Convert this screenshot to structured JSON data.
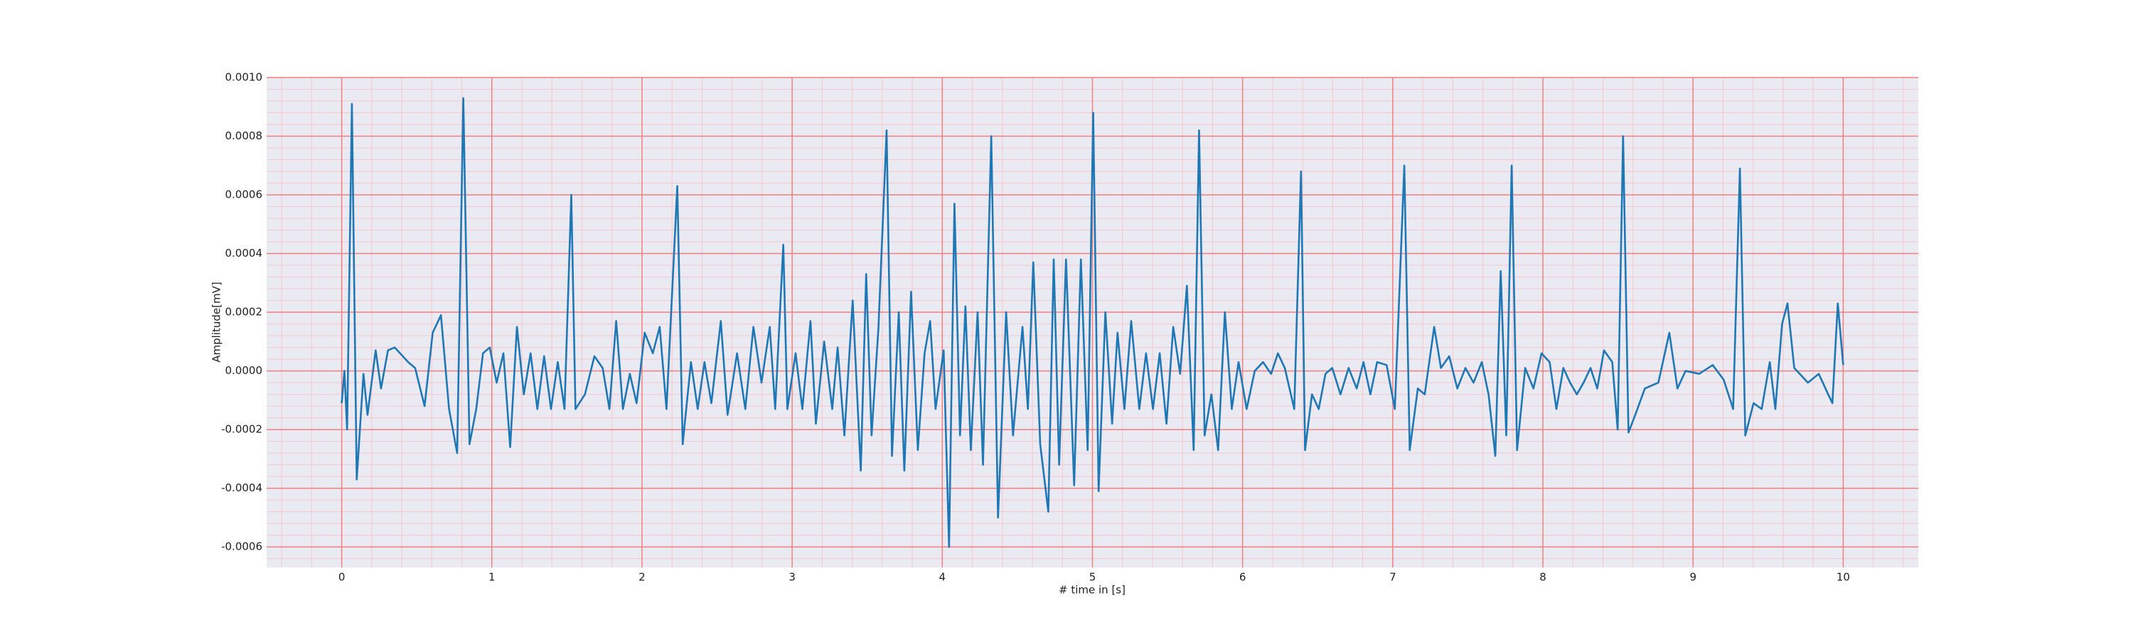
{
  "chart_data": {
    "type": "line",
    "xlabel": "# time in [s]",
    "ylabel": "Amplitude[mV]",
    "color": "#1f77b4",
    "background": "#eaeaf2",
    "grid": true,
    "grid_color": "#f08080",
    "minor_grid": true,
    "minor_grid_color": "#f6c6cc",
    "xlim": [
      -0.5,
      10.5
    ],
    "ylim": [
      -0.00067,
      0.001
    ],
    "xticks": [
      0,
      1,
      2,
      3,
      4,
      5,
      6,
      7,
      8,
      9,
      10
    ],
    "yticks": [
      {
        "value": -0.0006,
        "label": "-0.0006"
      },
      {
        "value": -0.0004,
        "label": "-0.0004"
      },
      {
        "value": -0.0002,
        "label": "-0.0002"
      },
      {
        "value": 0,
        "label": "0.0000"
      },
      {
        "value": 0.0002,
        "label": "0.0002"
      },
      {
        "value": 0.0004,
        "label": "0.0004"
      },
      {
        "value": 0.0006,
        "label": "0.0006"
      },
      {
        "value": 0.0008,
        "label": "0.0008"
      },
      {
        "value": 0.001,
        "label": "0.0010"
      }
    ],
    "x": [
      0.0,
      0.018,
      0.036,
      0.068,
      0.1,
      0.145,
      0.172,
      0.226,
      0.262,
      0.308,
      0.353,
      0.443,
      0.489,
      0.552,
      0.606,
      0.661,
      0.715,
      0.769,
      0.81,
      0.851,
      0.896,
      0.941,
      0.986,
      1.032,
      1.077,
      1.122,
      1.167,
      1.213,
      1.258,
      1.303,
      1.348,
      1.394,
      1.439,
      1.484,
      1.529,
      1.557,
      1.62,
      1.683,
      1.738,
      1.783,
      1.828,
      1.873,
      1.919,
      1.964,
      2.018,
      2.072,
      2.118,
      2.163,
      2.235,
      2.271,
      2.326,
      2.371,
      2.416,
      2.462,
      2.525,
      2.57,
      2.633,
      2.688,
      2.742,
      2.796,
      2.851,
      2.887,
      2.941,
      2.968,
      3.023,
      3.068,
      3.122,
      3.158,
      3.213,
      3.267,
      3.303,
      3.348,
      3.403,
      3.457,
      3.493,
      3.529,
      3.575,
      3.629,
      3.665,
      3.71,
      3.747,
      3.792,
      3.837,
      3.882,
      3.919,
      3.955,
      4.009,
      4.045,
      4.081,
      4.118,
      4.154,
      4.19,
      4.235,
      4.271,
      4.326,
      4.371,
      4.425,
      4.471,
      4.534,
      4.57,
      4.606,
      4.652,
      4.706,
      4.742,
      4.778,
      4.824,
      4.878,
      4.923,
      4.968,
      5.005,
      5.041,
      5.086,
      5.131,
      5.167,
      5.213,
      5.258,
      5.312,
      5.357,
      5.403,
      5.448,
      5.493,
      5.538,
      5.584,
      5.629,
      5.674,
      5.71,
      5.747,
      5.792,
      5.837,
      5.882,
      5.928,
      5.973,
      6.027,
      6.081,
      6.136,
      6.19,
      6.235,
      6.281,
      6.344,
      6.389,
      6.416,
      6.462,
      6.507,
      6.552,
      6.597,
      6.652,
      6.706,
      6.76,
      6.805,
      6.851,
      6.896,
      6.959,
      7.014,
      7.077,
      7.113,
      7.167,
      7.213,
      7.276,
      7.321,
      7.376,
      7.43,
      7.484,
      7.538,
      7.593,
      7.638,
      7.683,
      7.719,
      7.756,
      7.792,
      7.828,
      7.882,
      7.937,
      7.991,
      8.045,
      8.09,
      8.136,
      8.181,
      8.226,
      8.271,
      8.317,
      8.362,
      8.407,
      8.462,
      8.498,
      8.534,
      8.57,
      8.615,
      8.679,
      8.769,
      8.842,
      8.896,
      8.95,
      9.041,
      9.131,
      9.204,
      9.267,
      9.312,
      9.348,
      9.403,
      9.457,
      9.511,
      9.548,
      9.593,
      9.629,
      9.674,
      9.765,
      9.837,
      9.9,
      9.928,
      9.964,
      10.0
    ],
    "values": [
      -0.00011,
      0,
      -0.0002,
      0.00091,
      -0.00037,
      -1e-05,
      -0.00015,
      7e-05,
      -6e-05,
      7e-05,
      8e-05,
      3e-05,
      1e-05,
      -0.00012,
      0.00013,
      0.00019,
      -0.00013,
      -0.00028,
      0.00093,
      -0.00025,
      -0.00013,
      6e-05,
      8e-05,
      -4e-05,
      6e-05,
      -0.00026,
      0.00015,
      -8e-05,
      6e-05,
      -0.00013,
      5e-05,
      -0.00013,
      3e-05,
      -0.00013,
      0.0006,
      -0.00013,
      -8e-05,
      5e-05,
      1e-05,
      -0.00013,
      0.00017,
      -0.00013,
      -1e-05,
      -0.00011,
      0.00013,
      6e-05,
      0.00015,
      -0.00013,
      0.00063,
      -0.00025,
      3e-05,
      -0.00013,
      3e-05,
      -0.00011,
      0.00017,
      -0.00015,
      6e-05,
      -0.00013,
      0.00015,
      -4e-05,
      0.00015,
      -0.00013,
      0.00043,
      -0.00013,
      6e-05,
      -0.00013,
      0.00017,
      -0.00018,
      0.0001,
      -0.00013,
      8e-05,
      -0.00022,
      0.00024,
      -0.00034,
      0.00033,
      -0.00022,
      0.00015,
      0.00082,
      -0.00029,
      0.0002,
      -0.00034,
      0.00027,
      -0.00027,
      6e-05,
      0.00017,
      -0.00013,
      7e-05,
      -0.0006,
      0.00057,
      -0.00022,
      0.00022,
      -0.00027,
      0.0002,
      -0.00032,
      0.0008,
      -0.0005,
      0.0002,
      -0.00022,
      0.00015,
      -0.00013,
      0.00037,
      -0.00025,
      -0.00048,
      0.00038,
      -0.00032,
      0.00038,
      -0.00039,
      0.00038,
      -0.00027,
      0.00088,
      -0.00041,
      0.0002,
      -0.00018,
      0.00013,
      -0.00013,
      0.00017,
      -0.00013,
      6e-05,
      -0.00013,
      6e-05,
      -0.00018,
      0.00015,
      -1e-05,
      0.00029,
      -0.00027,
      0.00082,
      -0.00022,
      -8e-05,
      -0.00027,
      0.0002,
      -0.00013,
      3e-05,
      -0.00013,
      0,
      3e-05,
      -1e-05,
      6e-05,
      1e-05,
      -0.00013,
      0.00068,
      -0.00027,
      -8e-05,
      -0.00013,
      -1e-05,
      1e-05,
      -8e-05,
      1e-05,
      -6e-05,
      3e-05,
      -8e-05,
      3e-05,
      2e-05,
      -0.00013,
      0.0007,
      -0.00027,
      -6e-05,
      -8e-05,
      0.00015,
      1e-05,
      5e-05,
      -6e-05,
      1e-05,
      -4e-05,
      3e-05,
      -8e-05,
      -0.00029,
      0.00034,
      -0.00022,
      0.0007,
      -0.00027,
      1e-05,
      -6e-05,
      6e-05,
      3e-05,
      -0.00013,
      1e-05,
      -4e-05,
      -8e-05,
      -4e-05,
      1e-05,
      -6e-05,
      7e-05,
      3e-05,
      -0.0002,
      0.0008,
      -0.00021,
      -0.00015,
      -6e-05,
      -4e-05,
      0.00013,
      -6e-05,
      0,
      -1e-05,
      2e-05,
      -3e-05,
      -0.00013,
      0.00069,
      -0.00022,
      -0.00011,
      -0.00013,
      3e-05,
      -0.00013,
      0.00016,
      0.00023,
      1e-05,
      -4e-05,
      -1e-05,
      -8e-05,
      -0.00011,
      0.00023,
      2e-05
    ]
  }
}
